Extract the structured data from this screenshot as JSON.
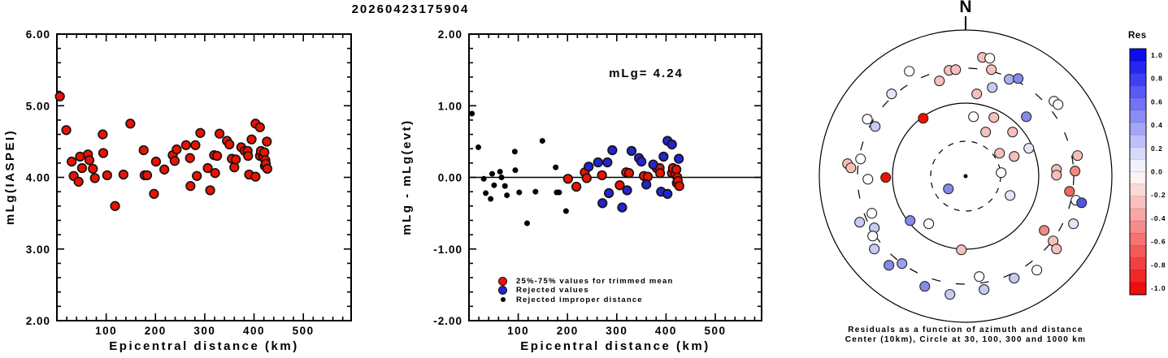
{
  "title": "20260423175904",
  "polar": {
    "north_label": "N",
    "caption_line1": "Residuals as a function of azimuth and distance",
    "caption_line2": "Center (10km), Circle at 30, 100, 300 and 1000 km"
  },
  "colors": {
    "trimmed_red": "#ee1100",
    "rejected_blue": "#2424d0",
    "improper_black": "#000000",
    "colorbar_top_blue": "#0000ee",
    "colorbar_mid_white": "#ffffff",
    "colorbar_bottom_red": "#ee0000"
  },
  "chart_data": [
    {
      "type": "scatter",
      "xlabel": "Epicentral distance (km)",
      "ylabel": "mLg(IASPEI)",
      "xlim": [
        0,
        597
      ],
      "ylim": [
        2,
        6
      ],
      "xticks": [
        100,
        200,
        300,
        400,
        500
      ],
      "xtick_labels": [
        "100",
        "200",
        "300",
        "400",
        "500"
      ],
      "yticks": [
        2,
        3,
        4,
        5,
        6
      ],
      "ytick_labels": [
        "2.00",
        "3.00",
        "4.00",
        "5.00",
        "6.00"
      ],
      "x_minor_step": 20,
      "y_minor_step": 0.2,
      "grid": false,
      "series": [
        {
          "name": "mLg station values",
          "color": "#ee1100",
          "marker_r": 5.3,
          "points": [
            [
              6,
              5.13
            ],
            [
              19,
              4.66
            ],
            [
              30,
              4.22
            ],
            [
              34,
              4.02
            ],
            [
              44,
              3.94
            ],
            [
              47,
              4.29
            ],
            [
              51,
              4.13
            ],
            [
              63,
              4.32
            ],
            [
              66,
              4.24
            ],
            [
              73,
              4.12
            ],
            [
              77,
              3.99
            ],
            [
              93,
              4.6
            ],
            [
              94,
              4.34
            ],
            [
              102,
              4.03
            ],
            [
              118,
              3.6
            ],
            [
              135,
              4.04
            ],
            [
              149,
              4.75
            ],
            [
              176,
              4.38
            ],
            [
              178,
              4.03
            ],
            [
              183,
              4.03
            ],
            [
              197,
              3.77
            ],
            [
              201,
              4.22
            ],
            [
              218,
              4.11
            ],
            [
              235,
              4.31
            ],
            [
              239,
              4.23
            ],
            [
              243,
              4.39
            ],
            [
              262,
              4.45
            ],
            [
              270,
              4.27
            ],
            [
              271,
              3.88
            ],
            [
              281,
              4.45
            ],
            [
              284,
              4.02
            ],
            [
              291,
              4.62
            ],
            [
              306,
              4.13
            ],
            [
              311,
              3.82
            ],
            [
              319,
              4.31
            ],
            [
              321,
              4.06
            ],
            [
              325,
              4.3
            ],
            [
              330,
              4.61
            ],
            [
              345,
              4.51
            ],
            [
              350,
              4.46
            ],
            [
              355,
              4.26
            ],
            [
              360,
              4.14
            ],
            [
              363,
              4.25
            ],
            [
              374,
              4.42
            ],
            [
              381,
              4.37
            ],
            [
              387,
              4.37
            ],
            [
              388,
              4.3
            ],
            [
              390,
              4.04
            ],
            [
              395,
              4.53
            ],
            [
              403,
              4.01
            ],
            [
              403,
              4.75
            ],
            [
              412,
              4.7
            ],
            [
              412,
              4.3
            ],
            [
              414,
              4.37
            ],
            [
              419,
              4.28
            ],
            [
              421,
              4.35
            ],
            [
              422,
              4.16
            ],
            [
              423,
              4.24
            ],
            [
              424,
              4.19
            ],
            [
              426,
              4.5
            ],
            [
              427,
              4.12
            ]
          ]
        }
      ]
    },
    {
      "type": "scatter",
      "xlabel": "Epicentral distance (km)",
      "ylabel": "mLg - mLg(evt)",
      "annotation": "mLg= 4.24",
      "hline": 0,
      "xlim": [
        0,
        594
      ],
      "ylim": [
        -2,
        2
      ],
      "xticks": [
        100,
        200,
        300,
        400,
        500
      ],
      "xtick_labels": [
        "100",
        "200",
        "300",
        "400",
        "500"
      ],
      "yticks": [
        -2,
        -1,
        0,
        1,
        2
      ],
      "ytick_labels": [
        "-2.00",
        "-1.00",
        "0.00",
        "1.00",
        "2.00"
      ],
      "x_minor_step": 20,
      "y_minor_step": 0.2,
      "grid": false,
      "legend_position": "bottom-left-inside",
      "series": [
        {
          "name": "25%-75% values for trimmed mean",
          "color": "#ee1100",
          "marker_r": 5.3,
          "points": [
            [
              201,
              -0.02
            ],
            [
              218,
              -0.13
            ],
            [
              235,
              0.07
            ],
            [
              239,
              -0.01
            ],
            [
              270,
              0.03
            ],
            [
              306,
              -0.11
            ],
            [
              319,
              0.07
            ],
            [
              325,
              0.06
            ],
            [
              355,
              0.02
            ],
            [
              363,
              0.01
            ],
            [
              381,
              0.13
            ],
            [
              387,
              0.13
            ],
            [
              388,
              0.06
            ],
            [
              412,
              0.06
            ],
            [
              414,
              0.13
            ],
            [
              419,
              0.04
            ],
            [
              421,
              0.11
            ],
            [
              422,
              -0.08
            ],
            [
              423,
              0.0
            ],
            [
              424,
              -0.05
            ],
            [
              427,
              -0.12
            ]
          ]
        },
        {
          "name": "Rejected values",
          "color": "#2424d0",
          "marker_r": 5.3,
          "points": [
            [
              243,
              0.15
            ],
            [
              262,
              0.21
            ],
            [
              271,
              -0.36
            ],
            [
              281,
              0.21
            ],
            [
              284,
              -0.22
            ],
            [
              291,
              0.38
            ],
            [
              311,
              -0.42
            ],
            [
              321,
              -0.18
            ],
            [
              330,
              0.37
            ],
            [
              345,
              0.27
            ],
            [
              350,
              0.22
            ],
            [
              360,
              -0.1
            ],
            [
              374,
              0.18
            ],
            [
              390,
              -0.2
            ],
            [
              395,
              0.29
            ],
            [
              403,
              -0.23
            ],
            [
              403,
              0.51
            ],
            [
              412,
              0.46
            ],
            [
              426,
              0.26
            ]
          ]
        },
        {
          "name": "Rejected improper distance",
          "color": "#000000",
          "marker_r": 3.0,
          "points": [
            [
              6,
              0.89
            ],
            [
              19,
              0.42
            ],
            [
              30,
              -0.02
            ],
            [
              34,
              -0.22
            ],
            [
              44,
              -0.3
            ],
            [
              47,
              0.05
            ],
            [
              51,
              -0.11
            ],
            [
              63,
              0.08
            ],
            [
              66,
              0.0
            ],
            [
              73,
              -0.12
            ],
            [
              77,
              -0.25
            ],
            [
              93,
              0.36
            ],
            [
              94,
              0.1
            ],
            [
              102,
              -0.21
            ],
            [
              118,
              -0.64
            ],
            [
              135,
              -0.2
            ],
            [
              149,
              0.51
            ],
            [
              176,
              0.14
            ],
            [
              178,
              -0.21
            ],
            [
              183,
              -0.21
            ],
            [
              197,
              -0.47
            ]
          ]
        }
      ]
    },
    {
      "type": "polar_scatter",
      "title": "Residuals as a function of azimuth and distance",
      "subtitle": "Center (10km), Circle at 30, 100, 300 and 1000 km",
      "center_km": 10,
      "rings": [
        {
          "km": 30,
          "style": "dashed",
          "r_frac": 0.239
        },
        {
          "km": 100,
          "style": "solid",
          "r_frac": 0.5
        },
        {
          "km": 300,
          "style": "dashed",
          "r_frac": 0.739
        },
        {
          "km": 1000,
          "style": "solid",
          "r_frac": 1.0
        }
      ],
      "colorbar": {
        "title": "Res",
        "labels": [
          "1.0",
          "0.8",
          "0.6",
          "0.4",
          "0.2",
          "0.0",
          "-0.2",
          "-0.4",
          "-0.6",
          "-0.8",
          "-1.0"
        ],
        "value_top": 1.0,
        "value_bottom": -1.0,
        "segments": 20
      },
      "points": [
        {
          "dx": -0.385,
          "dy": -0.718,
          "color": "#ffffff"
        },
        {
          "dx": -0.113,
          "dy": -0.724,
          "color": "#f6c0ba"
        },
        {
          "dx": -0.068,
          "dy": -0.729,
          "color": "#f6c0ba"
        },
        {
          "dx": -0.179,
          "dy": -0.652,
          "color": "#f6c0ba"
        },
        {
          "dx": -0.506,
          "dy": -0.563,
          "color": "#e2e6f9"
        },
        {
          "dx": -0.672,
          "dy": -0.39,
          "color": "#ffffff"
        },
        {
          "dx": -0.618,
          "dy": -0.34,
          "color": "#c6cbf3"
        },
        {
          "dx": -0.29,
          "dy": -0.396,
          "color": "#ee1100"
        },
        {
          "dx": 0.054,
          "dy": -0.407,
          "color": "#ffffff"
        },
        {
          "dx": -0.807,
          "dy": -0.085,
          "color": "#f6c0ba"
        },
        {
          "dx": -0.784,
          "dy": -0.057,
          "color": "#f6c0ba"
        },
        {
          "dx": -0.718,
          "dy": -0.118,
          "color": "#ffffff"
        },
        {
          "dx": -0.668,
          "dy": 0.021,
          "color": "#ffffff"
        },
        {
          "dx": -0.546,
          "dy": 0.009,
          "color": "#ee1100"
        },
        {
          "dx": 0.115,
          "dy": -0.813,
          "color": "#f6c0ba"
        },
        {
          "dx": 0.165,
          "dy": -0.807,
          "color": "#ffffff"
        },
        {
          "dx": 0.176,
          "dy": -0.729,
          "color": "#f6c0ba"
        },
        {
          "dx": 0.298,
          "dy": -0.663,
          "color": "#aab0ef"
        },
        {
          "dx": 0.359,
          "dy": -0.668,
          "color": "#8489ec"
        },
        {
          "dx": 0.182,
          "dy": -0.607,
          "color": "#c6cbf3"
        },
        {
          "dx": 0.076,
          "dy": -0.563,
          "color": "#f6c0ba"
        },
        {
          "dx": 0.604,
          "dy": -0.513,
          "color": "#ffffff"
        },
        {
          "dx": 0.632,
          "dy": -0.49,
          "color": "#ffffff"
        },
        {
          "dx": 0.193,
          "dy": -0.402,
          "color": "#f6c0ba"
        },
        {
          "dx": 0.415,
          "dy": -0.407,
          "color": "#8489ec"
        },
        {
          "dx": 0.137,
          "dy": -0.302,
          "color": "#f6c0ba"
        },
        {
          "dx": 0.321,
          "dy": -0.302,
          "color": "#f6c0ba"
        },
        {
          "dx": 0.432,
          "dy": -0.191,
          "color": "#e2e6f9"
        },
        {
          "dx": 0.232,
          "dy": -0.157,
          "color": "#f6c0ba"
        },
        {
          "dx": 0.332,
          "dy": -0.135,
          "color": "#f6c0ba"
        },
        {
          "dx": 0.243,
          "dy": -0.024,
          "color": "#ffffff"
        },
        {
          "dx": 0.765,
          "dy": -0.141,
          "color": "#f6c0ba"
        },
        {
          "dx": 0.621,
          "dy": -0.046,
          "color": "#f6c0ba"
        },
        {
          "dx": 0.621,
          "dy": -0.007,
          "color": "#f6c0ba"
        },
        {
          "dx": 0.748,
          "dy": -0.035,
          "color": "#ef8a7e"
        },
        {
          "dx": 0.71,
          "dy": 0.104,
          "color": "#ef6a5e"
        },
        {
          "dx": 0.754,
          "dy": 0.165,
          "color": "#ffffff"
        },
        {
          "dx": 0.793,
          "dy": 0.182,
          "color": "#5156e0"
        },
        {
          "dx": 0.304,
          "dy": 0.132,
          "color": "#e2e6f9"
        },
        {
          "dx": 0.737,
          "dy": 0.326,
          "color": "#e2e6f9"
        },
        {
          "dx": 0.537,
          "dy": 0.371,
          "color": "#ef8a7e"
        },
        {
          "dx": 0.598,
          "dy": 0.443,
          "color": "#f6c0ba"
        },
        {
          "dx": 0.621,
          "dy": 0.498,
          "color": "#f6c0ba"
        },
        {
          "dx": -0.029,
          "dy": 0.504,
          "color": "#f6c0ba"
        },
        {
          "dx": 0.487,
          "dy": 0.643,
          "color": "#ffffff"
        },
        {
          "dx": 0.332,
          "dy": 0.698,
          "color": "#c6cbf3"
        },
        {
          "dx": 0.093,
          "dy": 0.687,
          "color": "#ffffff"
        },
        {
          "dx": 0.126,
          "dy": 0.776,
          "color": "#c6cbf3"
        },
        {
          "dx": -0.118,
          "dy": 0.087,
          "color": "#8489ec"
        },
        {
          "dx": -0.724,
          "dy": 0.315,
          "color": "#c6cbf3"
        },
        {
          "dx": -0.641,
          "dy": 0.254,
          "color": "#ffffff"
        },
        {
          "dx": -0.624,
          "dy": 0.354,
          "color": "#c6cbf3"
        },
        {
          "dx": -0.635,
          "dy": 0.41,
          "color": "#ffffff"
        },
        {
          "dx": -0.624,
          "dy": 0.498,
          "color": "#c6cbf3"
        },
        {
          "dx": -0.524,
          "dy": 0.61,
          "color": "#8489ec"
        },
        {
          "dx": -0.435,
          "dy": 0.598,
          "color": "#9a9eef"
        },
        {
          "dx": -0.379,
          "dy": 0.304,
          "color": "#8489ec"
        },
        {
          "dx": -0.252,
          "dy": 0.326,
          "color": "#ffffff"
        },
        {
          "dx": -0.279,
          "dy": 0.754,
          "color": "#8489ec"
        },
        {
          "dx": -0.107,
          "dy": 0.809,
          "color": "#c6cbf3"
        }
      ]
    }
  ]
}
